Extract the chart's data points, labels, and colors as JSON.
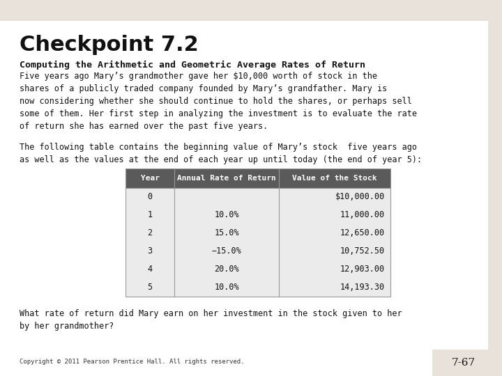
{
  "title": "Checkpoint 7.2",
  "subtitle": "Computing the Arithmetic and Geometric Average Rates of Return",
  "paragraph1": "Five years ago Mary’s grandmother gave her $10,000 worth of stock in the\nshares of a publicly traded company founded by Mary’s grandfather. Mary is\nnow considering whether she should continue to hold the shares, or perhaps sell\nsome of them. Her first step in analyzing the investment is to evaluate the rate\nof return she has earned over the past five years.",
  "paragraph2": "The following table contains the beginning value of Mary’s stock  five years ago\nas well as the values at the end of each year up until today (the end of year 5):",
  "table_headers": [
    "Year",
    "Annual Rate of Return",
    "Value of the Stock"
  ],
  "table_rows": [
    [
      "0",
      "",
      "$10,000.00"
    ],
    [
      "1",
      "10.0%",
      "11,000.00"
    ],
    [
      "2",
      "15.0%",
      "12,650.00"
    ],
    [
      "3",
      "−15.0%",
      "10,752.50"
    ],
    [
      "4",
      "20.0%",
      "12,903.00"
    ],
    [
      "5",
      "10.0%",
      "14,193.30"
    ]
  ],
  "question": "What rate of return did Mary earn on her investment in the stock given to her\nby her grandmother?",
  "copyright": "Copyright © 2011 Pearson Prentice Hall. All rights reserved.",
  "page_number": "7-67",
  "bg_color": "#e8e2da",
  "header_bg": "#5a5a5a",
  "header_fg": "#ffffff",
  "table_row_bg": "#ebebeb",
  "content_bg": "#ffffff"
}
